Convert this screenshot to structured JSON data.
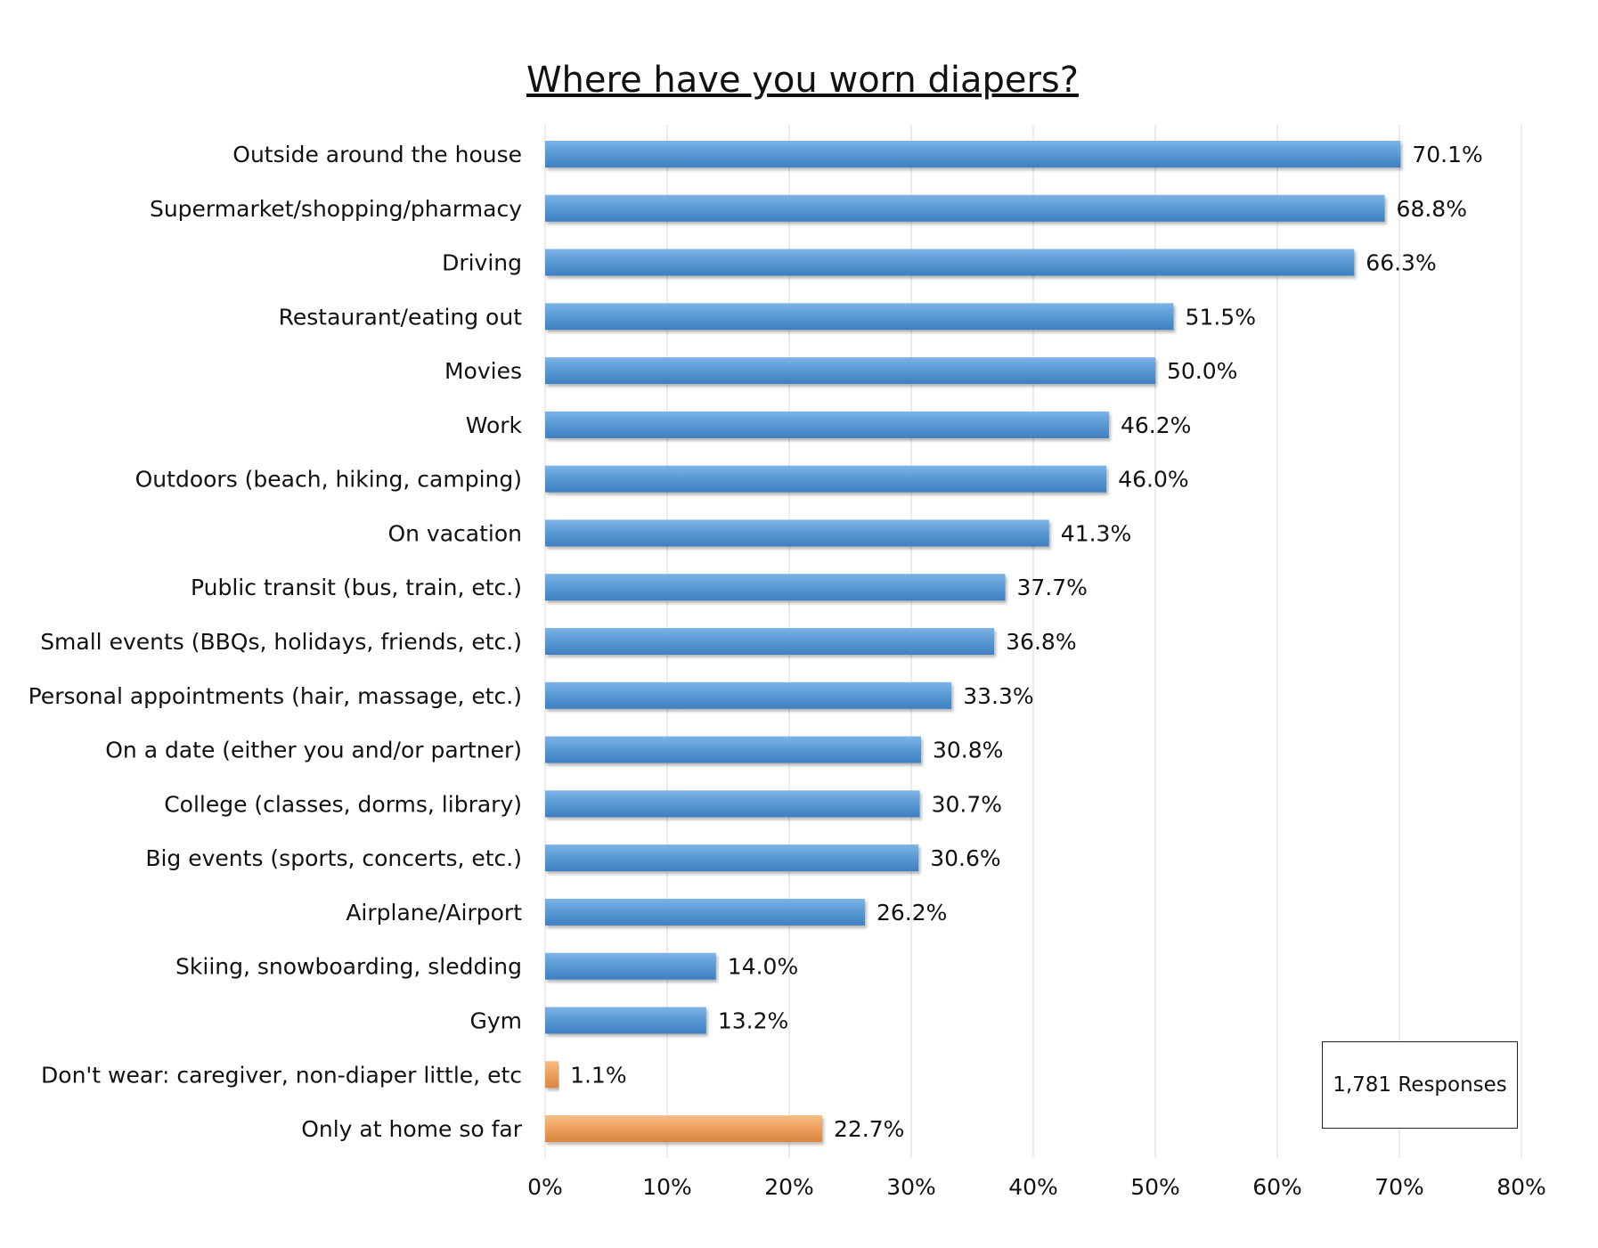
{
  "chart_data": {
    "type": "bar",
    "orientation": "horizontal",
    "title": "Where have you worn diapers?",
    "xlabel": "",
    "ylabel": "",
    "xlim": [
      0,
      80
    ],
    "x_ticks": [
      0,
      10,
      20,
      30,
      40,
      50,
      60,
      70,
      80
    ],
    "x_tick_labels": [
      "0%",
      "10%",
      "20%",
      "30%",
      "40%",
      "50%",
      "60%",
      "70%",
      "80%"
    ],
    "grid": "vertical",
    "legend": "none",
    "categories": [
      "Outside around the house",
      "Supermarket/shopping/pharmacy",
      "Driving",
      "Restaurant/eating out",
      "Movies",
      "Work",
      "Outdoors (beach, hiking, camping)",
      "On vacation",
      "Public transit (bus, train, etc.)",
      "Small events (BBQs, holidays,  friends, etc.)",
      "Personal appointments (hair, massage, etc.)",
      "On a date (either you and/or partner)",
      "College (classes, dorms, library)",
      "Big events (sports, concerts, etc.)",
      "Airplane/Airport",
      "Skiing, snowboarding, sledding",
      "Gym",
      "Don't wear: caregiver, non-diaper little, etc",
      "Only at home so far"
    ],
    "values": [
      70.1,
      68.8,
      66.3,
      51.5,
      50.0,
      46.2,
      46.0,
      41.3,
      37.7,
      36.8,
      33.3,
      30.8,
      30.7,
      30.6,
      26.2,
      14.0,
      13.2,
      1.1,
      22.7
    ],
    "value_labels": [
      "70.1%",
      "68.8%",
      "66.3%",
      "51.5%",
      "50.0%",
      "46.2%",
      "46.0%",
      "41.3%",
      "37.7%",
      "36.8%",
      "33.3%",
      "30.8%",
      "30.7%",
      "30.6%",
      "26.2%",
      "14.0%",
      "13.2%",
      "1.1%",
      "22.7%"
    ],
    "bar_colors": [
      "#5b9bd5",
      "#5b9bd5",
      "#5b9bd5",
      "#5b9bd5",
      "#5b9bd5",
      "#5b9bd5",
      "#5b9bd5",
      "#5b9bd5",
      "#5b9bd5",
      "#5b9bd5",
      "#5b9bd5",
      "#5b9bd5",
      "#5b9bd5",
      "#5b9bd5",
      "#5b9bd5",
      "#5b9bd5",
      "#5b9bd5",
      "#eda25f",
      "#eda25f"
    ],
    "annotation": "1,781 Responses"
  }
}
